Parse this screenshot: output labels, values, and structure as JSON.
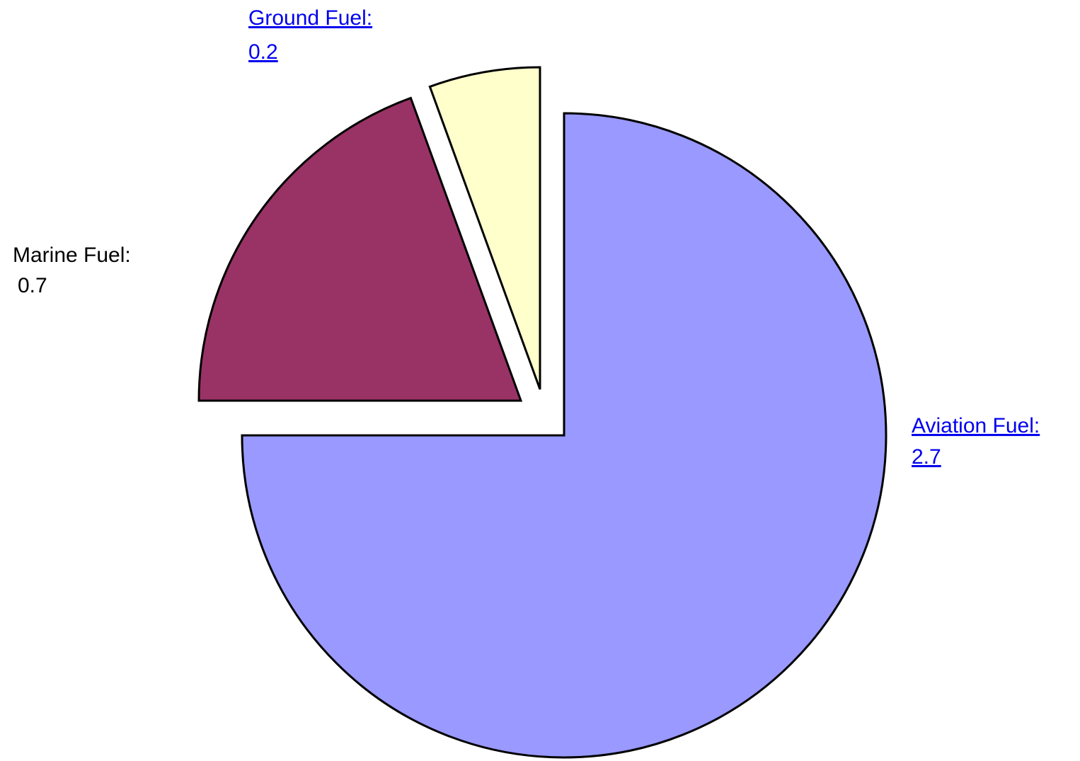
{
  "chart_data": {
    "type": "pie",
    "categories": [
      "Aviation Fuel:",
      "Marine Fuel:",
      "Ground Fuel:"
    ],
    "values": [
      2.7,
      0.7,
      0.2
    ],
    "colors": [
      "#9999ff",
      "#993366",
      "#ffffcc"
    ]
  }
}
